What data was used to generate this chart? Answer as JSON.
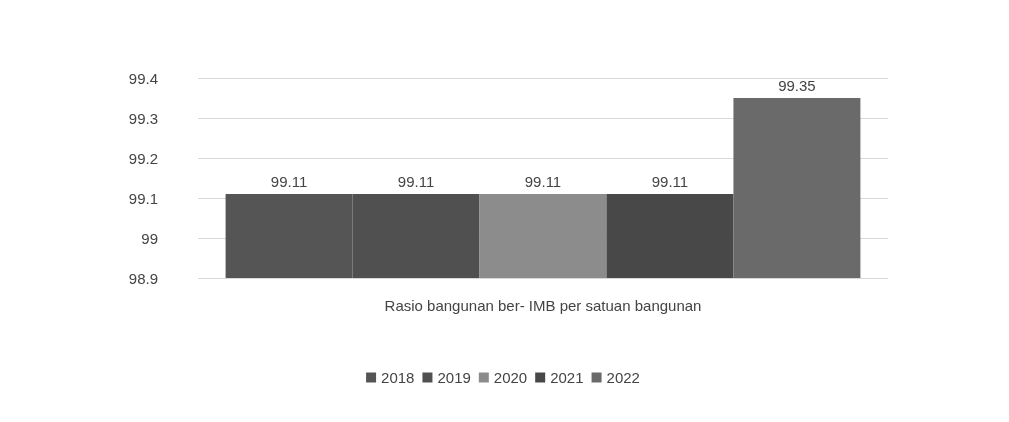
{
  "chart_data": {
    "type": "bar",
    "categories": [
      "Rasio bangunan ber- IMB per satuan bangunan"
    ],
    "series": [
      {
        "name": "2018",
        "color": "#555555",
        "values": [
          99.11
        ]
      },
      {
        "name": "2019",
        "color": "#505050",
        "values": [
          99.11
        ]
      },
      {
        "name": "2020",
        "color": "#8c8c8c",
        "values": [
          99.11
        ]
      },
      {
        "name": "2021",
        "color": "#484848",
        "values": [
          99.11
        ]
      },
      {
        "name": "2022",
        "color": "#6a6a6a",
        "values": [
          99.35
        ]
      }
    ],
    "ylim": [
      98.9,
      99.4
    ],
    "yticks": [
      98.9,
      99,
      99.1,
      99.2,
      99.3,
      99.4
    ],
    "grid": "y",
    "legend": "bottom",
    "data_labels": true
  }
}
